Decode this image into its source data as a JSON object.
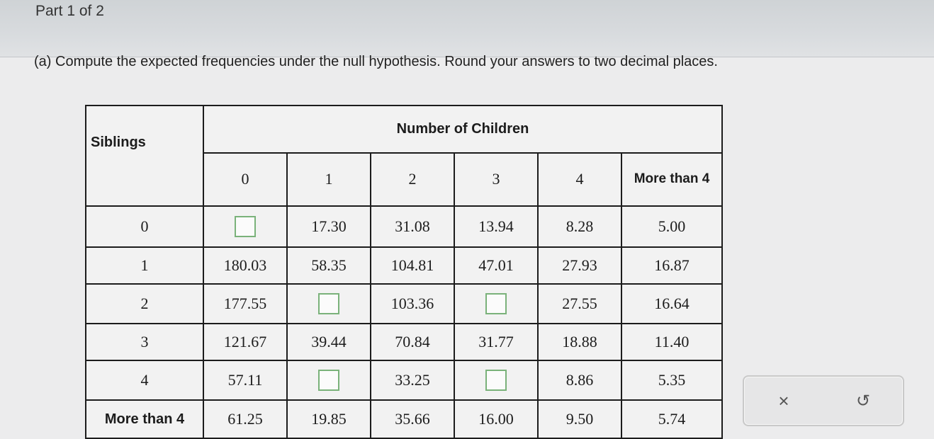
{
  "part_label": "Part 1 of 2",
  "question": "(a) Compute the expected frequencies under the null hypothesis. Round your answers to two decimal places.",
  "table": {
    "row_header": "Siblings",
    "col_group_header": "Number of Children",
    "columns": [
      "0",
      "1",
      "2",
      "3",
      "4",
      "More than 4"
    ],
    "rows": [
      {
        "label": "0",
        "cells": [
          "",
          "17.30",
          "31.08",
          "13.94",
          "8.28",
          "5.00"
        ]
      },
      {
        "label": "1",
        "cells": [
          "180.03",
          "58.35",
          "104.81",
          "47.01",
          "27.93",
          "16.87"
        ]
      },
      {
        "label": "2",
        "cells": [
          "177.55",
          "",
          "103.36",
          "",
          "27.55",
          "16.64"
        ]
      },
      {
        "label": "3",
        "cells": [
          "121.67",
          "39.44",
          "70.84",
          "31.77",
          "18.88",
          "11.40"
        ]
      },
      {
        "label": "4",
        "cells": [
          "57.11",
          "",
          "33.25",
          "",
          "8.86",
          "5.35"
        ]
      },
      {
        "label": "More than 4",
        "cells": [
          "61.25",
          "19.85",
          "35.66",
          "16.00",
          "9.50",
          "5.74"
        ]
      }
    ]
  },
  "actions": {
    "clear_glyph": "×",
    "undo_glyph": "↺",
    "clear_icon": "close-icon",
    "undo_icon": "undo-icon"
  }
}
